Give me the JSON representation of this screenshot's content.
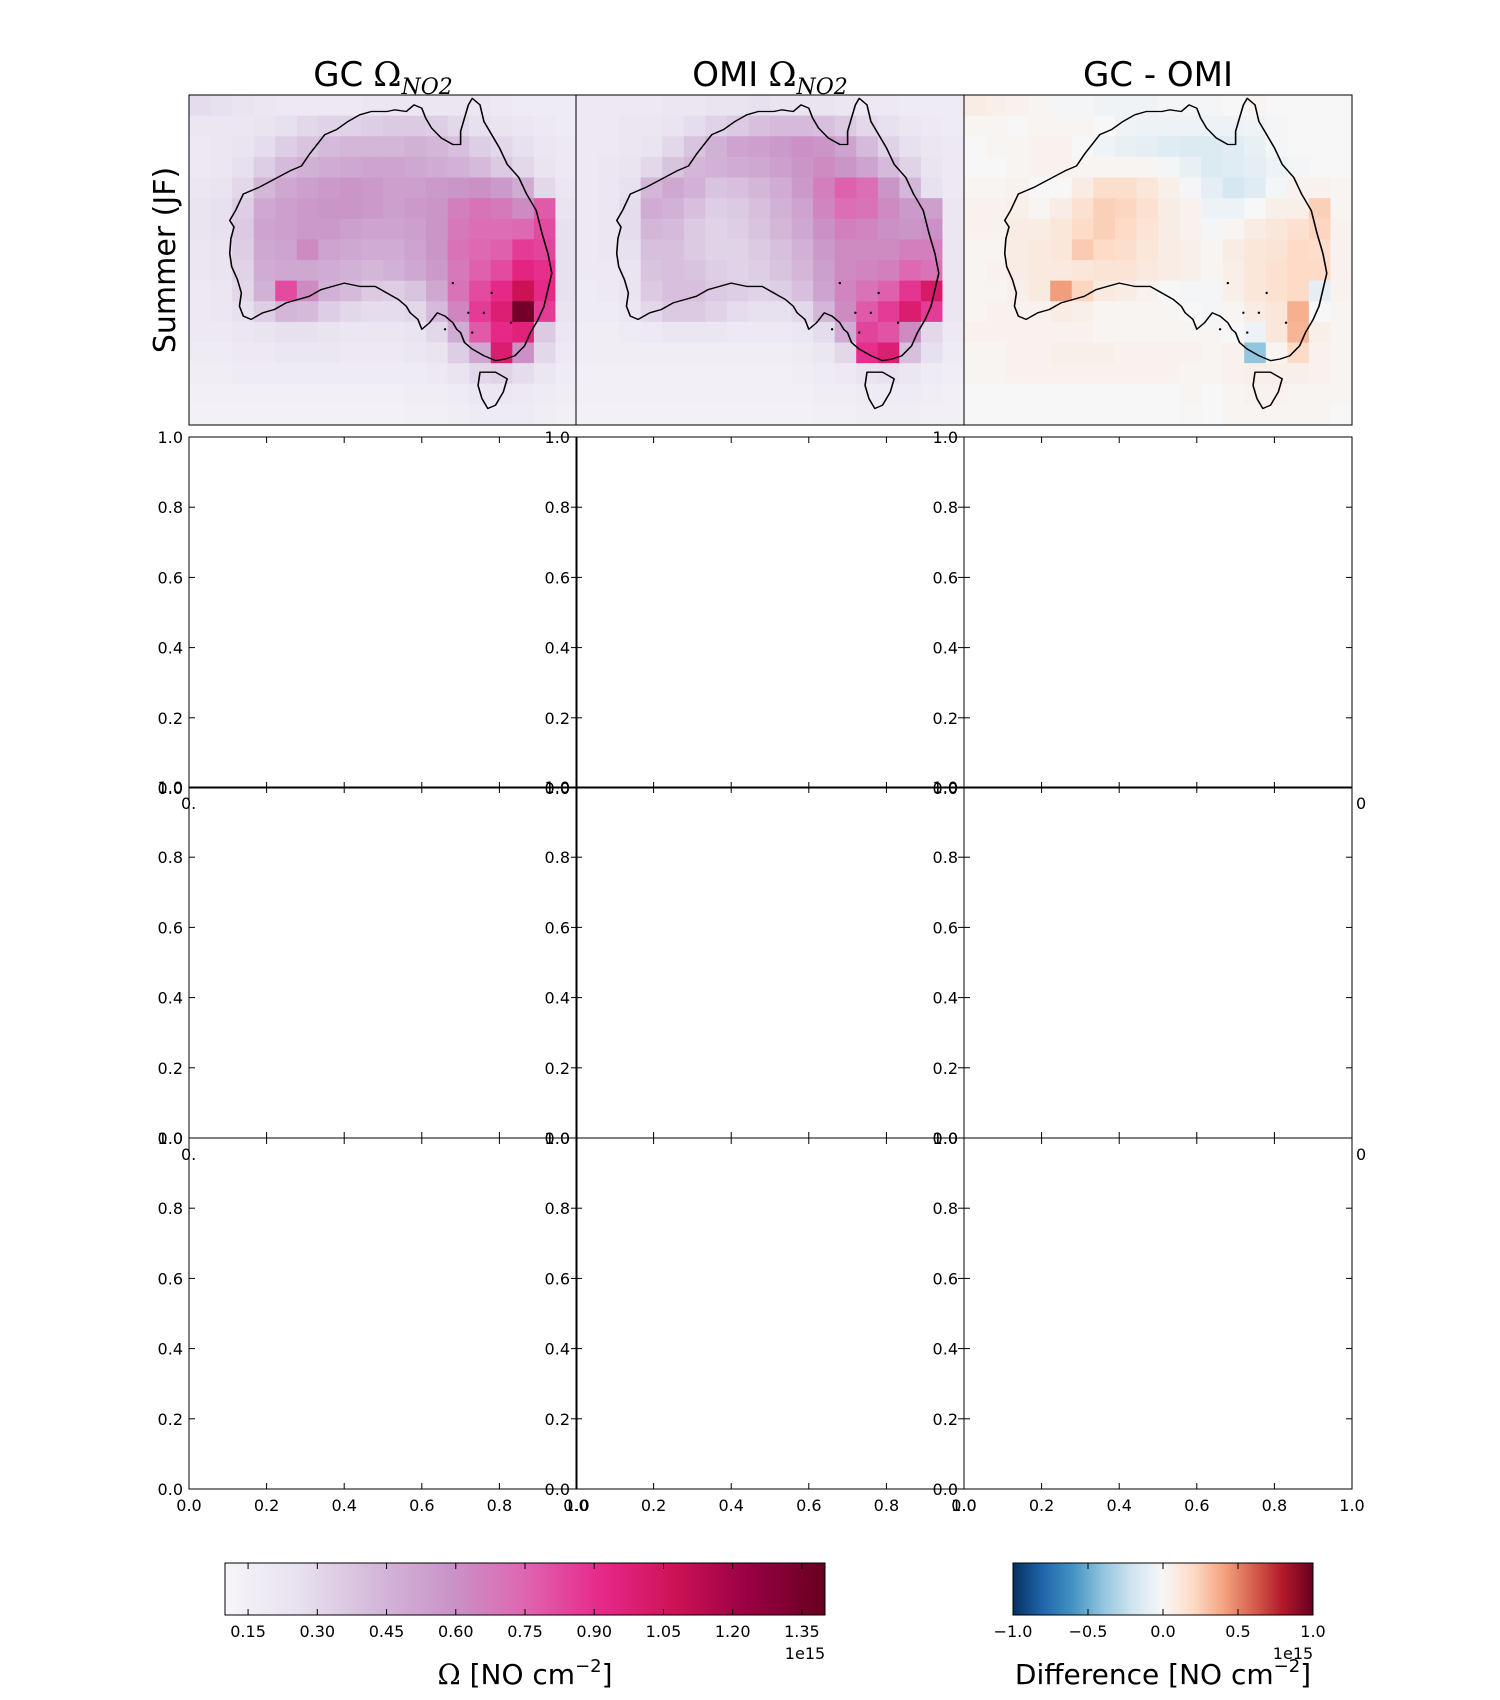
{
  "figure": {
    "columns": [
      {
        "title": "GC",
        "math_symbol": "Ω",
        "math_subscript": "NO2"
      },
      {
        "title": "OMI",
        "math_symbol": "Ω",
        "math_subscript": "NO2"
      },
      {
        "title": "GC - OMI",
        "math_symbol": "",
        "math_subscript": ""
      }
    ],
    "row_labels": [
      "Summer (JF)"
    ]
  },
  "colorbars": [
    {
      "name": "omega",
      "colormap": "PuRd",
      "range": [
        0.1,
        1.4
      ],
      "ticks": [
        "0.15",
        "0.30",
        "0.45",
        "0.60",
        "0.75",
        "0.90",
        "1.05",
        "1.20",
        "1.35"
      ],
      "tick_values": [
        0.15,
        0.3,
        0.45,
        0.6,
        0.75,
        0.9,
        1.05,
        1.2,
        1.35
      ],
      "label_symbol": "Ω",
      "label_text": " [NO cm",
      "label_exponent": "−2",
      "label_close": "]",
      "offset_text": "1e15"
    },
    {
      "name": "difference",
      "colormap": "RdBu_r",
      "range": [
        -1.0,
        1.0
      ],
      "ticks": [
        "−1.0",
        "−0.5",
        "0.0",
        "0.5",
        "1.0"
      ],
      "tick_values": [
        -1.0,
        -0.5,
        0.0,
        0.5,
        1.0
      ],
      "label_text": "Difference [NO cm",
      "label_exponent": "−2",
      "label_close": "]",
      "offset_text": "1e15"
    }
  ],
  "empty_axes": {
    "ticks": [
      "0.0",
      "0.2",
      "0.4",
      "0.6",
      "0.8",
      "1.0"
    ],
    "tick_values": [
      0.0,
      0.2,
      0.4,
      0.6,
      0.8,
      1.0
    ]
  },
  "chart_data": [
    {
      "type": "heatmap",
      "title": "GC Ω NO2",
      "ylabel": "Summer (JF)",
      "colormap": "PuRd",
      "value_range": [
        0.1,
        1.4
      ],
      "units": "1e15 NO cm^-2",
      "grid_note": "gridded column over Australia, 18 columns x 16 rows, rows listed north to south",
      "values": [
        [
          0.28,
          0.26,
          0.24,
          0.22,
          0.2,
          0.2,
          0.2,
          0.2,
          0.22,
          0.22,
          0.22,
          0.22,
          0.22,
          0.22,
          0.2,
          0.18,
          0.18,
          0.18
        ],
        [
          0.22,
          0.22,
          0.22,
          0.24,
          0.26,
          0.3,
          0.32,
          0.32,
          0.34,
          0.36,
          0.36,
          0.34,
          0.3,
          0.26,
          0.24,
          0.22,
          0.2,
          0.18
        ],
        [
          0.2,
          0.22,
          0.24,
          0.28,
          0.34,
          0.38,
          0.42,
          0.44,
          0.44,
          0.44,
          0.46,
          0.44,
          0.4,
          0.34,
          0.3,
          0.26,
          0.22,
          0.2
        ],
        [
          0.2,
          0.22,
          0.26,
          0.34,
          0.42,
          0.46,
          0.48,
          0.5,
          0.52,
          0.52,
          0.5,
          0.48,
          0.46,
          0.42,
          0.36,
          0.3,
          0.24,
          0.2
        ],
        [
          0.22,
          0.24,
          0.3,
          0.44,
          0.5,
          0.54,
          0.56,
          0.58,
          0.56,
          0.54,
          0.54,
          0.56,
          0.58,
          0.6,
          0.56,
          0.48,
          0.3,
          0.22
        ],
        [
          0.24,
          0.26,
          0.34,
          0.5,
          0.54,
          0.56,
          0.58,
          0.58,
          0.56,
          0.54,
          0.56,
          0.58,
          0.66,
          0.7,
          0.68,
          0.62,
          0.78,
          0.24
        ],
        [
          0.24,
          0.26,
          0.36,
          0.52,
          0.54,
          0.56,
          0.56,
          0.54,
          0.52,
          0.52,
          0.54,
          0.58,
          0.68,
          0.72,
          0.72,
          0.74,
          0.82,
          0.26
        ],
        [
          0.22,
          0.24,
          0.34,
          0.5,
          0.52,
          0.62,
          0.52,
          0.5,
          0.48,
          0.48,
          0.52,
          0.58,
          0.7,
          0.74,
          0.76,
          0.86,
          0.84,
          0.26
        ],
        [
          0.22,
          0.24,
          0.32,
          0.48,
          0.5,
          0.5,
          0.48,
          0.46,
          0.44,
          0.46,
          0.5,
          0.56,
          0.68,
          0.76,
          0.82,
          0.94,
          0.9,
          0.26
        ],
        [
          0.2,
          0.22,
          0.3,
          0.46,
          0.82,
          0.62,
          0.46,
          0.42,
          0.36,
          0.34,
          0.38,
          0.5,
          0.7,
          0.82,
          0.92,
          1.08,
          0.92,
          0.26
        ],
        [
          0.2,
          0.22,
          0.26,
          0.34,
          0.44,
          0.42,
          0.34,
          0.3,
          0.28,
          0.28,
          0.3,
          0.42,
          0.64,
          0.86,
          0.98,
          1.36,
          0.86,
          0.24
        ],
        [
          0.2,
          0.2,
          0.22,
          0.24,
          0.26,
          0.26,
          0.24,
          0.22,
          0.22,
          0.22,
          0.24,
          0.3,
          0.48,
          0.78,
          0.92,
          0.96,
          0.36,
          0.22
        ],
        [
          0.18,
          0.18,
          0.2,
          0.2,
          0.22,
          0.22,
          0.22,
          0.2,
          0.2,
          0.2,
          0.22,
          0.24,
          0.34,
          0.5,
          1.0,
          0.6,
          0.3,
          0.2
        ],
        [
          0.16,
          0.16,
          0.18,
          0.18,
          0.18,
          0.18,
          0.18,
          0.18,
          0.18,
          0.18,
          0.18,
          0.2,
          0.24,
          0.3,
          0.32,
          0.28,
          0.22,
          0.18
        ],
        [
          0.14,
          0.14,
          0.14,
          0.14,
          0.14,
          0.14,
          0.14,
          0.14,
          0.14,
          0.14,
          0.16,
          0.16,
          0.18,
          0.22,
          0.22,
          0.2,
          0.18,
          0.16
        ],
        [
          0.13,
          0.13,
          0.13,
          0.13,
          0.13,
          0.13,
          0.13,
          0.13,
          0.13,
          0.13,
          0.14,
          0.14,
          0.16,
          0.18,
          0.18,
          0.18,
          0.16,
          0.14
        ]
      ]
    },
    {
      "type": "heatmap",
      "title": "OMI Ω NO2",
      "colormap": "PuRd",
      "value_range": [
        0.1,
        1.4
      ],
      "units": "1e15 NO cm^-2",
      "grid_note": "gridded column over Australia, 18 columns x 16 rows, rows listed north to south",
      "values": [
        [
          0.2,
          0.2,
          0.2,
          0.2,
          0.22,
          0.22,
          0.24,
          0.24,
          0.26,
          0.24,
          0.24,
          0.24,
          0.22,
          0.2,
          0.2,
          0.18,
          0.18,
          0.18
        ],
        [
          0.2,
          0.2,
          0.22,
          0.22,
          0.24,
          0.28,
          0.32,
          0.36,
          0.4,
          0.42,
          0.42,
          0.4,
          0.36,
          0.3,
          0.26,
          0.22,
          0.2,
          0.18
        ],
        [
          0.2,
          0.2,
          0.22,
          0.24,
          0.3,
          0.38,
          0.46,
          0.52,
          0.54,
          0.56,
          0.6,
          0.58,
          0.52,
          0.42,
          0.32,
          0.26,
          0.22,
          0.2
        ],
        [
          0.2,
          0.22,
          0.24,
          0.3,
          0.38,
          0.44,
          0.46,
          0.48,
          0.5,
          0.54,
          0.58,
          0.62,
          0.58,
          0.52,
          0.42,
          0.32,
          0.24,
          0.2
        ],
        [
          0.2,
          0.22,
          0.26,
          0.44,
          0.5,
          0.46,
          0.38,
          0.4,
          0.44,
          0.48,
          0.56,
          0.66,
          0.76,
          0.72,
          0.58,
          0.44,
          0.26,
          0.2
        ],
        [
          0.2,
          0.22,
          0.28,
          0.48,
          0.46,
          0.4,
          0.34,
          0.36,
          0.4,
          0.46,
          0.52,
          0.64,
          0.72,
          0.7,
          0.62,
          0.56,
          0.54,
          0.22
        ],
        [
          0.2,
          0.22,
          0.28,
          0.44,
          0.42,
          0.36,
          0.32,
          0.34,
          0.38,
          0.44,
          0.5,
          0.6,
          0.66,
          0.64,
          0.6,
          0.58,
          0.6,
          0.22
        ],
        [
          0.2,
          0.22,
          0.26,
          0.4,
          0.4,
          0.36,
          0.32,
          0.32,
          0.36,
          0.4,
          0.46,
          0.56,
          0.62,
          0.62,
          0.62,
          0.66,
          0.66,
          0.22
        ],
        [
          0.2,
          0.2,
          0.24,
          0.38,
          0.4,
          0.38,
          0.34,
          0.32,
          0.34,
          0.38,
          0.44,
          0.54,
          0.62,
          0.64,
          0.66,
          0.74,
          0.7,
          0.22
        ],
        [
          0.18,
          0.2,
          0.24,
          0.36,
          0.4,
          0.4,
          0.36,
          0.34,
          0.32,
          0.34,
          0.4,
          0.52,
          0.64,
          0.7,
          0.76,
          0.88,
          1.02,
          0.22
        ],
        [
          0.18,
          0.18,
          0.22,
          0.3,
          0.36,
          0.36,
          0.32,
          0.28,
          0.26,
          0.26,
          0.3,
          0.44,
          0.62,
          0.78,
          0.86,
          1.0,
          0.86,
          0.22
        ],
        [
          0.16,
          0.16,
          0.18,
          0.2,
          0.22,
          0.22,
          0.22,
          0.2,
          0.2,
          0.2,
          0.22,
          0.28,
          0.48,
          0.84,
          0.8,
          0.62,
          0.3,
          0.2
        ],
        [
          0.16,
          0.16,
          0.16,
          0.16,
          0.16,
          0.16,
          0.16,
          0.16,
          0.16,
          0.16,
          0.18,
          0.22,
          0.3,
          0.9,
          0.98,
          0.4,
          0.26,
          0.18
        ],
        [
          0.14,
          0.14,
          0.14,
          0.14,
          0.14,
          0.14,
          0.14,
          0.14,
          0.14,
          0.14,
          0.16,
          0.18,
          0.2,
          0.24,
          0.26,
          0.22,
          0.18,
          0.16
        ],
        [
          0.14,
          0.14,
          0.14,
          0.14,
          0.14,
          0.14,
          0.14,
          0.14,
          0.14,
          0.14,
          0.14,
          0.16,
          0.16,
          0.18,
          0.18,
          0.18,
          0.16,
          0.14
        ],
        [
          0.13,
          0.13,
          0.13,
          0.13,
          0.13,
          0.13,
          0.13,
          0.13,
          0.13,
          0.13,
          0.13,
          0.14,
          0.14,
          0.16,
          0.16,
          0.16,
          0.14,
          0.14
        ]
      ]
    },
    {
      "type": "heatmap",
      "title": "GC - OMI",
      "colormap": "RdBu_r",
      "value_range": [
        -1.0,
        1.0
      ],
      "units": "1e15 NO cm^-2",
      "grid_note": "gridded column over Australia, 18 columns x 16 rows, rows listed north to south",
      "values": [
        [
          0.08,
          0.06,
          0.04,
          0.02,
          -0.02,
          -0.02,
          -0.04,
          -0.04,
          -0.04,
          -0.02,
          -0.02,
          -0.02,
          0.0,
          0.02,
          0.0,
          0.0,
          0.0,
          0.0
        ],
        [
          0.02,
          0.02,
          0.0,
          0.02,
          0.02,
          0.02,
          0.0,
          -0.04,
          -0.06,
          -0.06,
          -0.06,
          -0.06,
          -0.06,
          -0.04,
          -0.02,
          0.0,
          0.0,
          0.0
        ],
        [
          0.0,
          0.02,
          0.02,
          0.04,
          0.04,
          0.0,
          -0.04,
          -0.08,
          -0.1,
          -0.12,
          -0.14,
          -0.14,
          -0.12,
          -0.08,
          -0.02,
          0.0,
          0.0,
          0.0
        ],
        [
          0.0,
          0.0,
          0.02,
          0.04,
          0.04,
          0.02,
          0.02,
          0.02,
          0.02,
          -0.02,
          -0.08,
          -0.14,
          -0.12,
          -0.1,
          -0.06,
          -0.02,
          0.0,
          0.0
        ],
        [
          0.02,
          0.02,
          0.04,
          0.0,
          0.0,
          0.08,
          0.18,
          0.18,
          0.12,
          0.06,
          -0.02,
          -0.1,
          -0.18,
          -0.12,
          -0.02,
          0.04,
          0.04,
          0.02
        ],
        [
          0.04,
          0.04,
          0.06,
          0.02,
          0.08,
          0.16,
          0.24,
          0.22,
          0.16,
          0.08,
          0.04,
          -0.06,
          -0.06,
          0.0,
          0.06,
          0.06,
          0.24,
          0.02
        ],
        [
          0.04,
          0.04,
          0.08,
          0.08,
          0.12,
          0.2,
          0.24,
          0.2,
          0.14,
          0.08,
          0.04,
          -0.02,
          0.02,
          0.08,
          0.12,
          0.16,
          0.22,
          0.04
        ],
        [
          0.02,
          0.02,
          0.08,
          0.1,
          0.12,
          0.26,
          0.2,
          0.18,
          0.12,
          0.08,
          0.06,
          0.02,
          0.08,
          0.12,
          0.14,
          0.2,
          0.18,
          0.04
        ],
        [
          0.02,
          0.04,
          0.08,
          0.1,
          0.1,
          0.12,
          0.14,
          0.14,
          0.1,
          0.08,
          0.06,
          0.02,
          0.06,
          0.12,
          0.16,
          0.2,
          0.2,
          0.04
        ],
        [
          0.02,
          0.02,
          0.06,
          0.1,
          0.42,
          0.22,
          0.1,
          0.08,
          0.04,
          0.0,
          -0.02,
          -0.02,
          0.06,
          0.12,
          0.16,
          0.2,
          -0.1,
          0.04
        ],
        [
          0.02,
          0.04,
          0.04,
          0.04,
          0.08,
          0.06,
          0.02,
          0.02,
          0.02,
          0.02,
          0.0,
          -0.02,
          0.02,
          0.08,
          0.12,
          0.36,
          0.0,
          0.02
        ],
        [
          0.04,
          0.04,
          0.04,
          0.04,
          0.04,
          0.04,
          0.02,
          0.02,
          0.02,
          0.02,
          0.02,
          0.02,
          0.0,
          -0.06,
          0.12,
          0.34,
          0.06,
          0.02
        ],
        [
          0.02,
          0.02,
          0.04,
          0.04,
          0.06,
          0.06,
          0.06,
          0.04,
          0.04,
          0.04,
          0.04,
          0.02,
          0.04,
          -0.4,
          0.02,
          0.2,
          0.04,
          0.02
        ],
        [
          0.02,
          0.02,
          0.04,
          0.04,
          0.04,
          0.04,
          0.04,
          0.04,
          0.04,
          0.04,
          0.02,
          0.02,
          0.04,
          0.06,
          0.06,
          0.06,
          0.04,
          0.02
        ],
        [
          0.0,
          0.0,
          0.0,
          0.0,
          0.0,
          0.0,
          0.0,
          0.0,
          0.0,
          0.0,
          0.02,
          0.0,
          0.02,
          0.04,
          0.04,
          0.02,
          0.02,
          0.02
        ],
        [
          0.0,
          0.0,
          0.0,
          0.0,
          0.0,
          0.0,
          0.0,
          0.0,
          0.0,
          0.0,
          0.01,
          0.0,
          0.02,
          0.02,
          0.02,
          0.02,
          0.02,
          0.0
        ]
      ]
    }
  ]
}
